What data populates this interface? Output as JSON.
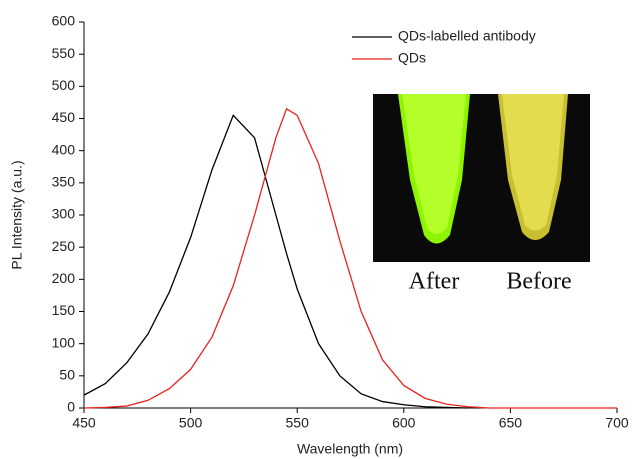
{
  "chart_data": {
    "type": "line",
    "x_label": "Wavelength (nm)",
    "y_label": "PL Intensity (a.u.)",
    "x": [
      450,
      460,
      470,
      480,
      490,
      500,
      510,
      520,
      530,
      540,
      545,
      550,
      560,
      570,
      580,
      590,
      600,
      610,
      620,
      630,
      640,
      650,
      660,
      670,
      680,
      690,
      700
    ],
    "series": [
      {
        "name": "QDs-labelled antibody",
        "color": "#000000",
        "values": [
          20,
          38,
          70,
          115,
          180,
          265,
          370,
          455,
          420,
          300,
          240,
          185,
          100,
          50,
          22,
          10,
          5,
          2,
          1,
          0,
          null,
          null,
          null,
          null,
          null,
          null,
          null
        ]
      },
      {
        "name": "QDs",
        "color": "#e8231b",
        "values": [
          0,
          1,
          3,
          12,
          30,
          60,
          110,
          190,
          300,
          420,
          465,
          455,
          380,
          260,
          150,
          75,
          35,
          15,
          6,
          2,
          0,
          0,
          0,
          0,
          0,
          0,
          0
        ]
      }
    ],
    "xlim": [
      450,
      700
    ],
    "xticks": [
      450,
      500,
      550,
      600,
      650,
      700
    ],
    "ylim": [
      0,
      600
    ],
    "yticks": [
      0,
      50,
      100,
      150,
      200,
      250,
      300,
      350,
      400,
      450,
      500,
      550,
      600
    ],
    "inset_labels": [
      "After",
      "Before"
    ]
  }
}
